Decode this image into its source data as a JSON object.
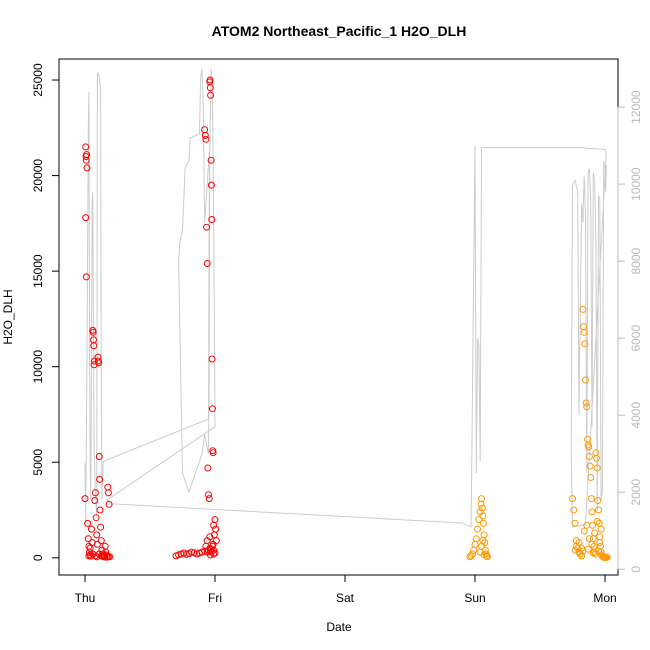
{
  "chart_data": {
    "type": "scatter",
    "title": "ATOM2 Northeast_Pacific_1 H2O_DLH",
    "xlabel": "Date",
    "ylabel": "H2O_DLH",
    "x_ticks": [
      "Thu",
      "Fri",
      "Sat",
      "Sun",
      "Mon"
    ],
    "y_ticks": [
      "0",
      "5000",
      "10000",
      "15000",
      "20000",
      "25000"
    ],
    "y_right_ticks": [
      "0",
      "2000",
      "4000",
      "6000",
      "8000",
      "10000",
      "12000"
    ],
    "ylim": [
      -900,
      26100
    ],
    "y_right_lim": [
      -150,
      13250
    ],
    "x_unit": "days after Thu 00:00",
    "xlim": [
      -0.2,
      4.1
    ],
    "grid": false,
    "colors": {
      "red_points": "#ff0000",
      "orange_points": "#ff9900",
      "altitude_line": "#cccccc",
      "axis": "#000000",
      "right_axis": "#bbbbbb"
    },
    "series": [
      {
        "color": "#ff0000",
        "points": [
          [
            0.0,
            3100
          ],
          [
            0.005,
            21500
          ],
          [
            0.008,
            21000
          ],
          [
            0.01,
            20800
          ],
          [
            0.012,
            21100
          ],
          [
            0.015,
            20400
          ],
          [
            0.005,
            17800
          ],
          [
            0.01,
            14700
          ],
          [
            0.02,
            1800
          ],
          [
            0.025,
            1000
          ],
          [
            0.03,
            600
          ],
          [
            0.035,
            300
          ],
          [
            0.04,
            150
          ],
          [
            0.045,
            80
          ],
          [
            0.05,
            1500
          ],
          [
            0.055,
            800
          ],
          [
            0.06,
            11900
          ],
          [
            0.062,
            11800
          ],
          [
            0.065,
            11400
          ],
          [
            0.068,
            11100
          ],
          [
            0.07,
            10100
          ],
          [
            0.072,
            10300
          ],
          [
            0.075,
            3000
          ],
          [
            0.08,
            3400
          ],
          [
            0.085,
            2100
          ],
          [
            0.09,
            1200
          ],
          [
            0.095,
            700
          ],
          [
            0.1,
            10500
          ],
          [
            0.102,
            10300
          ],
          [
            0.105,
            10200
          ],
          [
            0.11,
            5300
          ],
          [
            0.112,
            4100
          ],
          [
            0.115,
            2500
          ],
          [
            0.12,
            1600
          ],
          [
            0.125,
            900
          ],
          [
            0.13,
            400
          ],
          [
            0.135,
            200
          ],
          [
            0.14,
            100
          ],
          [
            0.145,
            60
          ],
          [
            0.15,
            40
          ],
          [
            0.155,
            600
          ],
          [
            0.16,
            300
          ],
          [
            0.165,
            150
          ],
          [
            0.17,
            80
          ],
          [
            0.175,
            3700
          ],
          [
            0.18,
            3400
          ],
          [
            0.185,
            2800
          ],
          [
            0.19,
            50
          ],
          [
            0.03,
            100
          ],
          [
            0.04,
            500
          ],
          [
            0.06,
            200
          ],
          [
            0.08,
            100
          ],
          [
            0.09,
            50
          ],
          [
            0.11,
            200
          ],
          [
            0.13,
            80
          ],
          [
            0.15,
            120
          ],
          [
            0.17,
            30
          ],
          [
            0.18,
            60
          ],
          [
            0.7,
            100
          ],
          [
            0.72,
            150
          ],
          [
            0.74,
            200
          ],
          [
            0.76,
            250
          ],
          [
            0.78,
            180
          ],
          [
            0.8,
            220
          ],
          [
            0.82,
            300
          ],
          [
            0.84,
            260
          ],
          [
            0.86,
            200
          ],
          [
            0.88,
            250
          ],
          [
            0.9,
            300
          ],
          [
            0.92,
            350
          ],
          [
            0.94,
            300
          ],
          [
            0.95,
            400
          ],
          [
            0.96,
            500
          ],
          [
            0.97,
            450
          ],
          [
            0.98,
            600
          ],
          [
            0.985,
            700
          ],
          [
            0.92,
            22400
          ],
          [
            0.925,
            22100
          ],
          [
            0.93,
            21900
          ],
          [
            0.935,
            17300
          ],
          [
            0.94,
            15400
          ],
          [
            0.945,
            4700
          ],
          [
            0.95,
            3300
          ],
          [
            0.955,
            3100
          ],
          [
            0.96,
            24900
          ],
          [
            0.962,
            25000
          ],
          [
            0.964,
            24600
          ],
          [
            0.966,
            24200
          ],
          [
            0.97,
            20800
          ],
          [
            0.972,
            19500
          ],
          [
            0.975,
            17700
          ],
          [
            0.978,
            10400
          ],
          [
            0.98,
            7800
          ],
          [
            0.982,
            5600
          ],
          [
            0.985,
            5500
          ],
          [
            0.99,
            1700
          ],
          [
            0.995,
            1200
          ],
          [
            1.0,
            2000
          ],
          [
            1.005,
            1500
          ],
          [
            1.01,
            900
          ],
          [
            0.93,
            600
          ],
          [
            0.94,
            900
          ],
          [
            0.96,
            1100
          ],
          [
            0.97,
            300
          ],
          [
            0.99,
            400
          ],
          [
            1.0,
            250
          ],
          [
            0.99,
            200
          ],
          [
            0.965,
            150
          ]
        ]
      },
      {
        "color": "#ff9900",
        "points": [
          [
            2.96,
            50
          ],
          [
            2.97,
            100
          ],
          [
            2.98,
            200
          ],
          [
            2.99,
            400
          ],
          [
            3.0,
            700
          ],
          [
            3.01,
            1000
          ],
          [
            3.02,
            1500
          ],
          [
            3.03,
            2000
          ],
          [
            3.04,
            2400
          ],
          [
            3.045,
            2800
          ],
          [
            3.05,
            3100
          ],
          [
            3.055,
            2600
          ],
          [
            3.06,
            2200
          ],
          [
            3.065,
            1800
          ],
          [
            3.07,
            1200
          ],
          [
            3.075,
            800
          ],
          [
            3.08,
            400
          ],
          [
            3.085,
            200
          ],
          [
            3.09,
            100
          ],
          [
            3.095,
            50
          ],
          [
            3.04,
            300
          ],
          [
            3.05,
            600
          ],
          [
            3.06,
            900
          ],
          [
            3.07,
            150
          ],
          [
            3.75,
            3100
          ],
          [
            3.76,
            2500
          ],
          [
            3.77,
            1800
          ],
          [
            3.78,
            900
          ],
          [
            3.79,
            500
          ],
          [
            3.8,
            300
          ],
          [
            3.81,
            200
          ],
          [
            3.82,
            100
          ],
          [
            3.83,
            13000
          ],
          [
            3.835,
            12100
          ],
          [
            3.84,
            11800
          ],
          [
            3.845,
            11200
          ],
          [
            3.85,
            9300
          ],
          [
            3.855,
            8100
          ],
          [
            3.86,
            7900
          ],
          [
            3.865,
            6200
          ],
          [
            3.87,
            5900
          ],
          [
            3.875,
            5800
          ],
          [
            3.88,
            5300
          ],
          [
            3.885,
            4800
          ],
          [
            3.89,
            4200
          ],
          [
            3.895,
            3100
          ],
          [
            3.9,
            2400
          ],
          [
            3.905,
            1700
          ],
          [
            3.91,
            1000
          ],
          [
            3.915,
            600
          ],
          [
            3.92,
            300
          ],
          [
            3.925,
            200
          ],
          [
            3.93,
            5500
          ],
          [
            3.935,
            5200
          ],
          [
            3.94,
            4700
          ],
          [
            3.945,
            3000
          ],
          [
            3.95,
            2500
          ],
          [
            3.955,
            1800
          ],
          [
            3.96,
            1100
          ],
          [
            3.965,
            600
          ],
          [
            3.97,
            300
          ],
          [
            3.975,
            150
          ],
          [
            3.98,
            80
          ],
          [
            3.985,
            40
          ],
          [
            3.99,
            30
          ],
          [
            3.995,
            20
          ],
          [
            4.0,
            15
          ],
          [
            4.005,
            25
          ],
          [
            4.01,
            30
          ],
          [
            4.015,
            20
          ],
          [
            3.77,
            400
          ],
          [
            3.78,
            600
          ],
          [
            3.8,
            800
          ],
          [
            3.82,
            500
          ],
          [
            3.84,
            1400
          ],
          [
            3.86,
            1700
          ],
          [
            3.88,
            1000
          ],
          [
            3.9,
            700
          ],
          [
            3.92,
            1300
          ],
          [
            3.94,
            1900
          ],
          [
            3.96,
            800
          ],
          [
            3.97,
            1500
          ],
          [
            3.95,
            350
          ],
          [
            3.91,
            250
          ],
          [
            3.87,
            450
          ],
          [
            3.83,
            350
          ]
        ]
      }
    ],
    "right_axis_line": {
      "color": "#cccccc",
      "points": [
        [
          0.0,
          2750
        ],
        [
          0.005,
          1200
        ],
        [
          0.015,
          5500
        ],
        [
          0.025,
          11500
        ],
        [
          0.03,
          12400
        ],
        [
          0.035,
          6000
        ],
        [
          0.04,
          2600
        ],
        [
          0.045,
          1800
        ],
        [
          0.055,
          9500
        ],
        [
          0.06,
          9800
        ],
        [
          0.065,
          6000
        ],
        [
          0.07,
          3200
        ],
        [
          0.08,
          2000
        ],
        [
          0.09,
          1400
        ],
        [
          0.095,
          12800
        ],
        [
          0.1,
          12900
        ],
        [
          0.11,
          12800
        ],
        [
          0.115,
          12600
        ],
        [
          0.12,
          12500
        ],
        [
          0.125,
          4500
        ],
        [
          0.13,
          1800
        ],
        [
          0.14,
          2800
        ],
        [
          0.95,
          3900
        ],
        [
          0.955,
          9500
        ],
        [
          0.96,
          11000
        ],
        [
          0.955,
          5000
        ],
        [
          0.95,
          3000
        ],
        [
          0.92,
          3500
        ],
        [
          0.9,
          3000
        ],
        [
          0.8,
          2000
        ],
        [
          0.75,
          2500
        ],
        [
          0.72,
          8000
        ],
        [
          0.73,
          8500
        ],
        [
          0.75,
          8800
        ],
        [
          0.77,
          10400
        ],
        [
          0.78,
          10500
        ],
        [
          0.8,
          10600
        ],
        [
          0.81,
          11200
        ],
        [
          0.88,
          11300
        ],
        [
          0.89,
          12800
        ],
        [
          0.9,
          13000
        ],
        [
          0.91,
          12000
        ],
        [
          0.92,
          9000
        ],
        [
          0.96,
          11000
        ],
        [
          0.97,
          13000
        ],
        [
          0.98,
          12500
        ],
        [
          0.99,
          9000
        ],
        [
          1.0,
          3700
        ],
        [
          0.17,
          1800
        ],
        [
          0.2,
          1700
        ],
        [
          2.9,
          1200
        ],
        [
          2.97,
          1100
        ],
        [
          3.0,
          11000
        ],
        [
          3.01,
          2500
        ],
        [
          3.02,
          6000
        ],
        [
          3.03,
          5800
        ],
        [
          3.04,
          2800
        ],
        [
          3.05,
          10950
        ],
        [
          3.8,
          10950
        ],
        [
          4.0,
          10900
        ],
        [
          4.01,
          10800
        ],
        [
          3.85,
          1150
        ],
        [
          3.75,
          1100
        ],
        [
          3.74,
          3000
        ],
        [
          3.75,
          10000
        ],
        [
          3.77,
          10100
        ],
        [
          3.79,
          9800
        ],
        [
          3.8,
          4000
        ],
        [
          3.82,
          9500
        ],
        [
          3.83,
          9000
        ],
        [
          3.84,
          10200
        ],
        [
          3.85,
          9200
        ],
        [
          3.86,
          2500
        ],
        [
          3.87,
          10300
        ],
        [
          3.88,
          10400
        ],
        [
          3.89,
          9600
        ],
        [
          3.9,
          3700
        ],
        [
          3.91,
          10300
        ],
        [
          3.92,
          10100
        ],
        [
          3.93,
          8500
        ],
        [
          3.94,
          1500
        ],
        [
          3.95,
          9700
        ],
        [
          3.96,
          9600
        ],
        [
          3.97,
          1800
        ],
        [
          3.98,
          2000
        ],
        [
          3.99,
          10600
        ],
        [
          4.0,
          10400
        ],
        [
          4.005,
          9800
        ],
        [
          4.01,
          10500
        ]
      ]
    }
  }
}
